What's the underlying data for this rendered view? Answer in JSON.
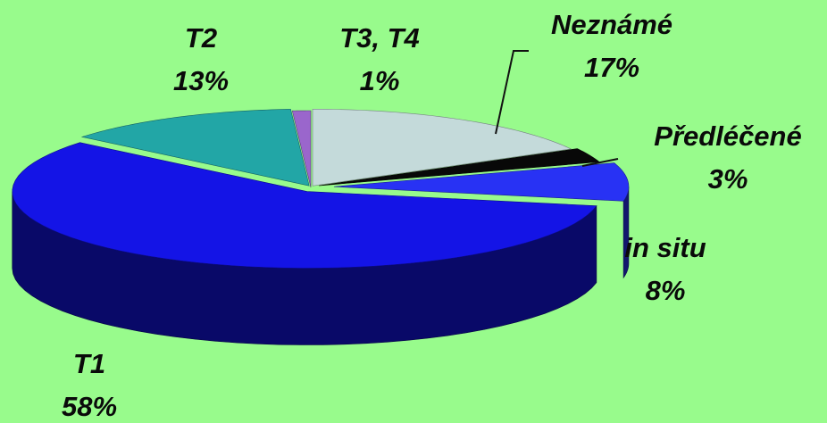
{
  "chart_data": {
    "type": "pie",
    "three_d": true,
    "categories": [
      "T2",
      "T3, T4",
      "Neznámé",
      "Předléčené",
      "in situ",
      "T1"
    ],
    "values": [
      13,
      1,
      17,
      3,
      8,
      58
    ],
    "value_labels": [
      "13%",
      "1%",
      "17%",
      "3%",
      "8%",
      "58%"
    ],
    "colors": [
      "#22a6a6",
      "#9a66cc",
      "#c4dada",
      "#080808",
      "#2832f4",
      "#1414e6"
    ]
  }
}
